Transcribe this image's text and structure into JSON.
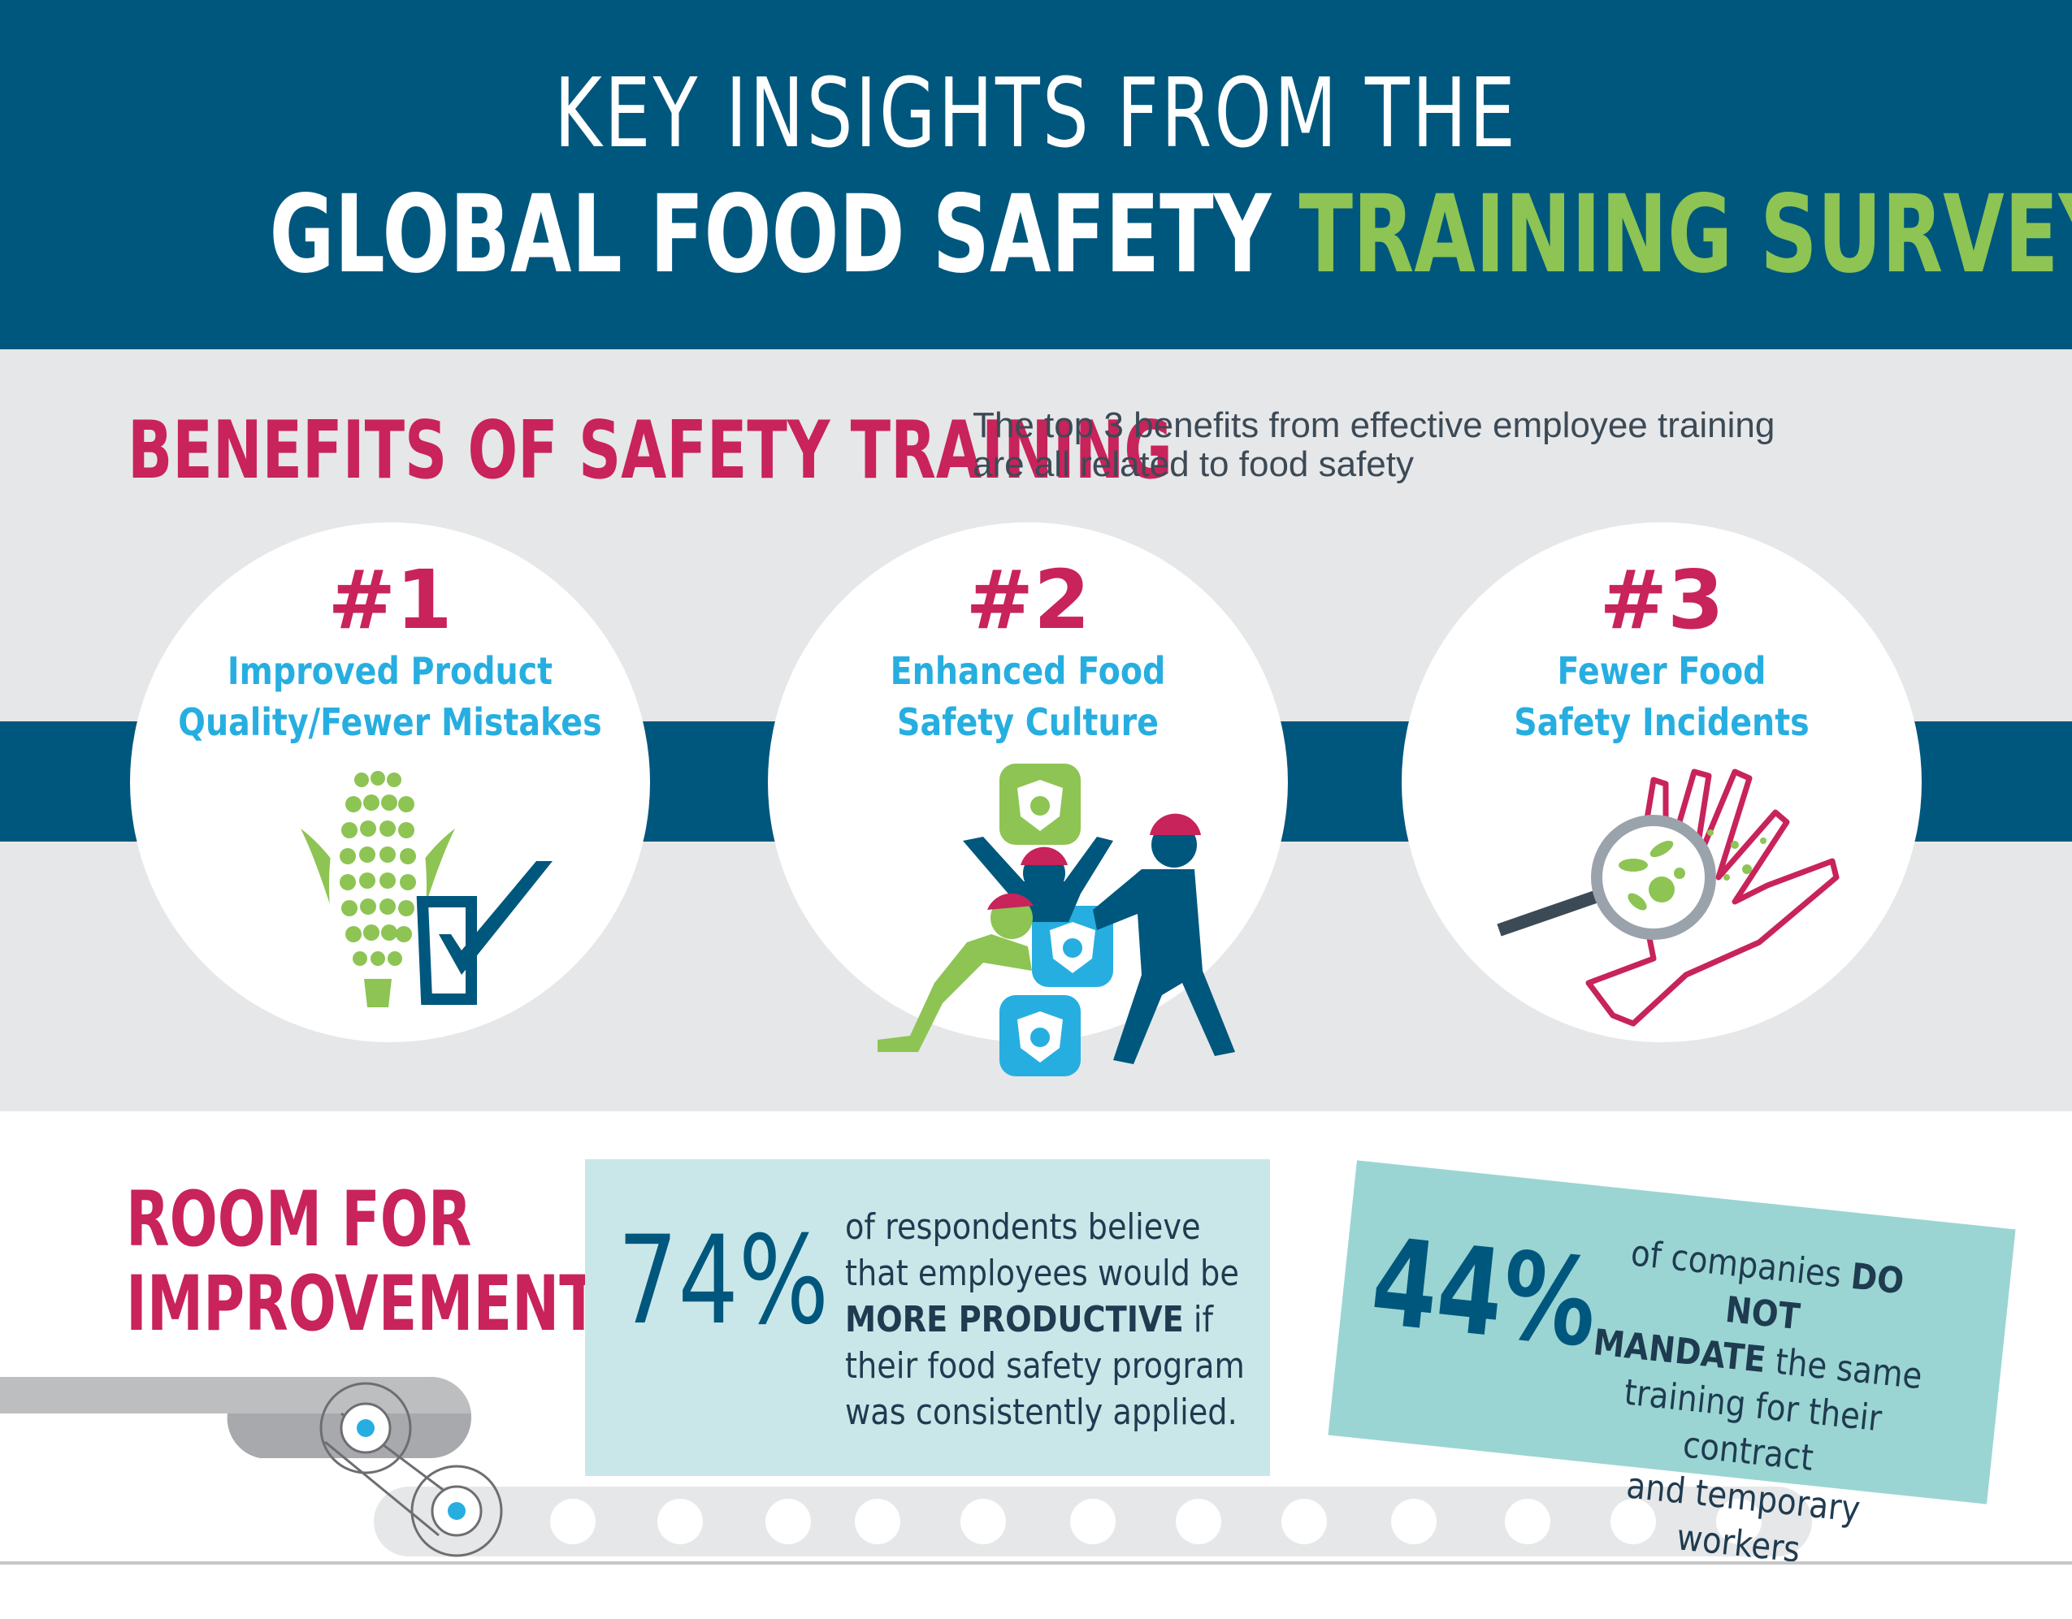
{
  "header": {
    "line1": "KEY INSIGHTS FROM THE",
    "line2_white": "GLOBAL FOOD SAFETY",
    "line2_green": "TRAINING SURVEY"
  },
  "benefits": {
    "heading": "BENEFITS OF SAFETY TRAINING",
    "subtitle_line1": "The top 3 benefits from effective employee training",
    "subtitle_line2": "are all related to food safety",
    "items": [
      {
        "rank": "#1",
        "line1": "Improved Product",
        "line2": "Quality/Fewer Mistakes",
        "icon": "corn-checkmark-icon"
      },
      {
        "rank": "#2",
        "line1": "Enhanced Food",
        "line2": "Safety Culture",
        "icon": "workers-stacking-blocks-icon"
      },
      {
        "rank": "#3",
        "line1": "Fewer Food",
        "line2": "Safety Incidents",
        "icon": "magnifier-bacteria-hand-icon"
      }
    ]
  },
  "improvement": {
    "heading_line1": "ROOM FOR",
    "heading_line2": "IMPROVEMENT",
    "stat1": {
      "value": "74%",
      "l1": "of respondents believe",
      "l2": "that employees would be",
      "l3_bold": "MORE PRODUCTIVE",
      "l3_rest": " if",
      "l4": "their food safety program",
      "l5": "was consistently applied."
    },
    "stat2": {
      "value": "44%",
      "l1a": "of companies ",
      "l1_bold": "DO NOT",
      "l2_bold": "MANDATE",
      "l2_rest": " the same",
      "l3": "training for their contract",
      "l4": "and temporary workers"
    }
  },
  "colors": {
    "navy": "#00577d",
    "green": "#8dc453",
    "magenta": "#c8235a",
    "cyan": "#27aee0",
    "light_gray": "#e6e7e8",
    "teal_light": "#c9e7e9",
    "teal": "#9ad5d3"
  }
}
